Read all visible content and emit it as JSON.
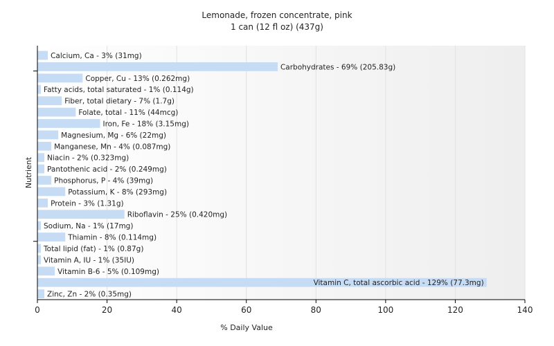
{
  "chart_data": {
    "type": "bar",
    "orientation": "horizontal",
    "title": "Lemonade, frozen concentrate, pink",
    "subtitle": "1 can (12 fl oz) (437g)",
    "xlabel": "% Daily Value",
    "ylabel": "Nutrient",
    "xlim": [
      0,
      140
    ],
    "xticks": [
      0,
      20,
      40,
      60,
      80,
      100,
      120,
      140
    ],
    "grid": true,
    "bar_color": "#c6dcf5",
    "categories": [
      "Calcium, Ca",
      "Carbohydrates",
      "Copper, Cu",
      "Fatty acids, total saturated",
      "Fiber, total dietary",
      "Folate, total",
      "Iron, Fe",
      "Magnesium, Mg",
      "Manganese, Mn",
      "Niacin",
      "Pantothenic acid",
      "Phosphorus, P",
      "Potassium, K",
      "Protein",
      "Riboflavin",
      "Sodium, Na",
      "Thiamin",
      "Total lipid (fat)",
      "Vitamin A, IU",
      "Vitamin B-6",
      "Vitamin C, total ascorbic acid",
      "Zinc, Zn"
    ],
    "values": [
      3,
      69,
      13,
      1,
      7,
      11,
      18,
      6,
      4,
      2,
      2,
      4,
      8,
      3,
      25,
      1,
      8,
      1,
      1,
      5,
      129,
      2
    ],
    "labels": [
      "Calcium, Ca - 3% (31mg)",
      "Carbohydrates - 69% (205.83g)",
      "Copper, Cu - 13% (0.262mg)",
      "Fatty acids, total saturated - 1% (0.114g)",
      "Fiber, total dietary - 7% (1.7g)",
      "Folate, total - 11% (44mcg)",
      "Iron, Fe - 18% (3.15mg)",
      "Magnesium, Mg - 6% (22mg)",
      "Manganese, Mn - 4% (0.087mg)",
      "Niacin - 2% (0.323mg)",
      "Pantothenic acid - 2% (0.249mg)",
      "Phosphorus, P - 4% (39mg)",
      "Potassium, K - 8% (293mg)",
      "Protein - 3% (1.31g)",
      "Riboflavin - 25% (0.420mg)",
      "Sodium, Na - 1% (17mg)",
      "Thiamin - 8% (0.114mg)",
      "Total lipid (fat) - 1% (0.87g)",
      "Vitamin A, IU - 1% (35IU)",
      "Vitamin B-6 - 5% (0.109mg)",
      "Vitamin C, total ascorbic acid - 129% (77.3mg)",
      "Zinc, Zn - 2% (0.35mg)"
    ]
  }
}
